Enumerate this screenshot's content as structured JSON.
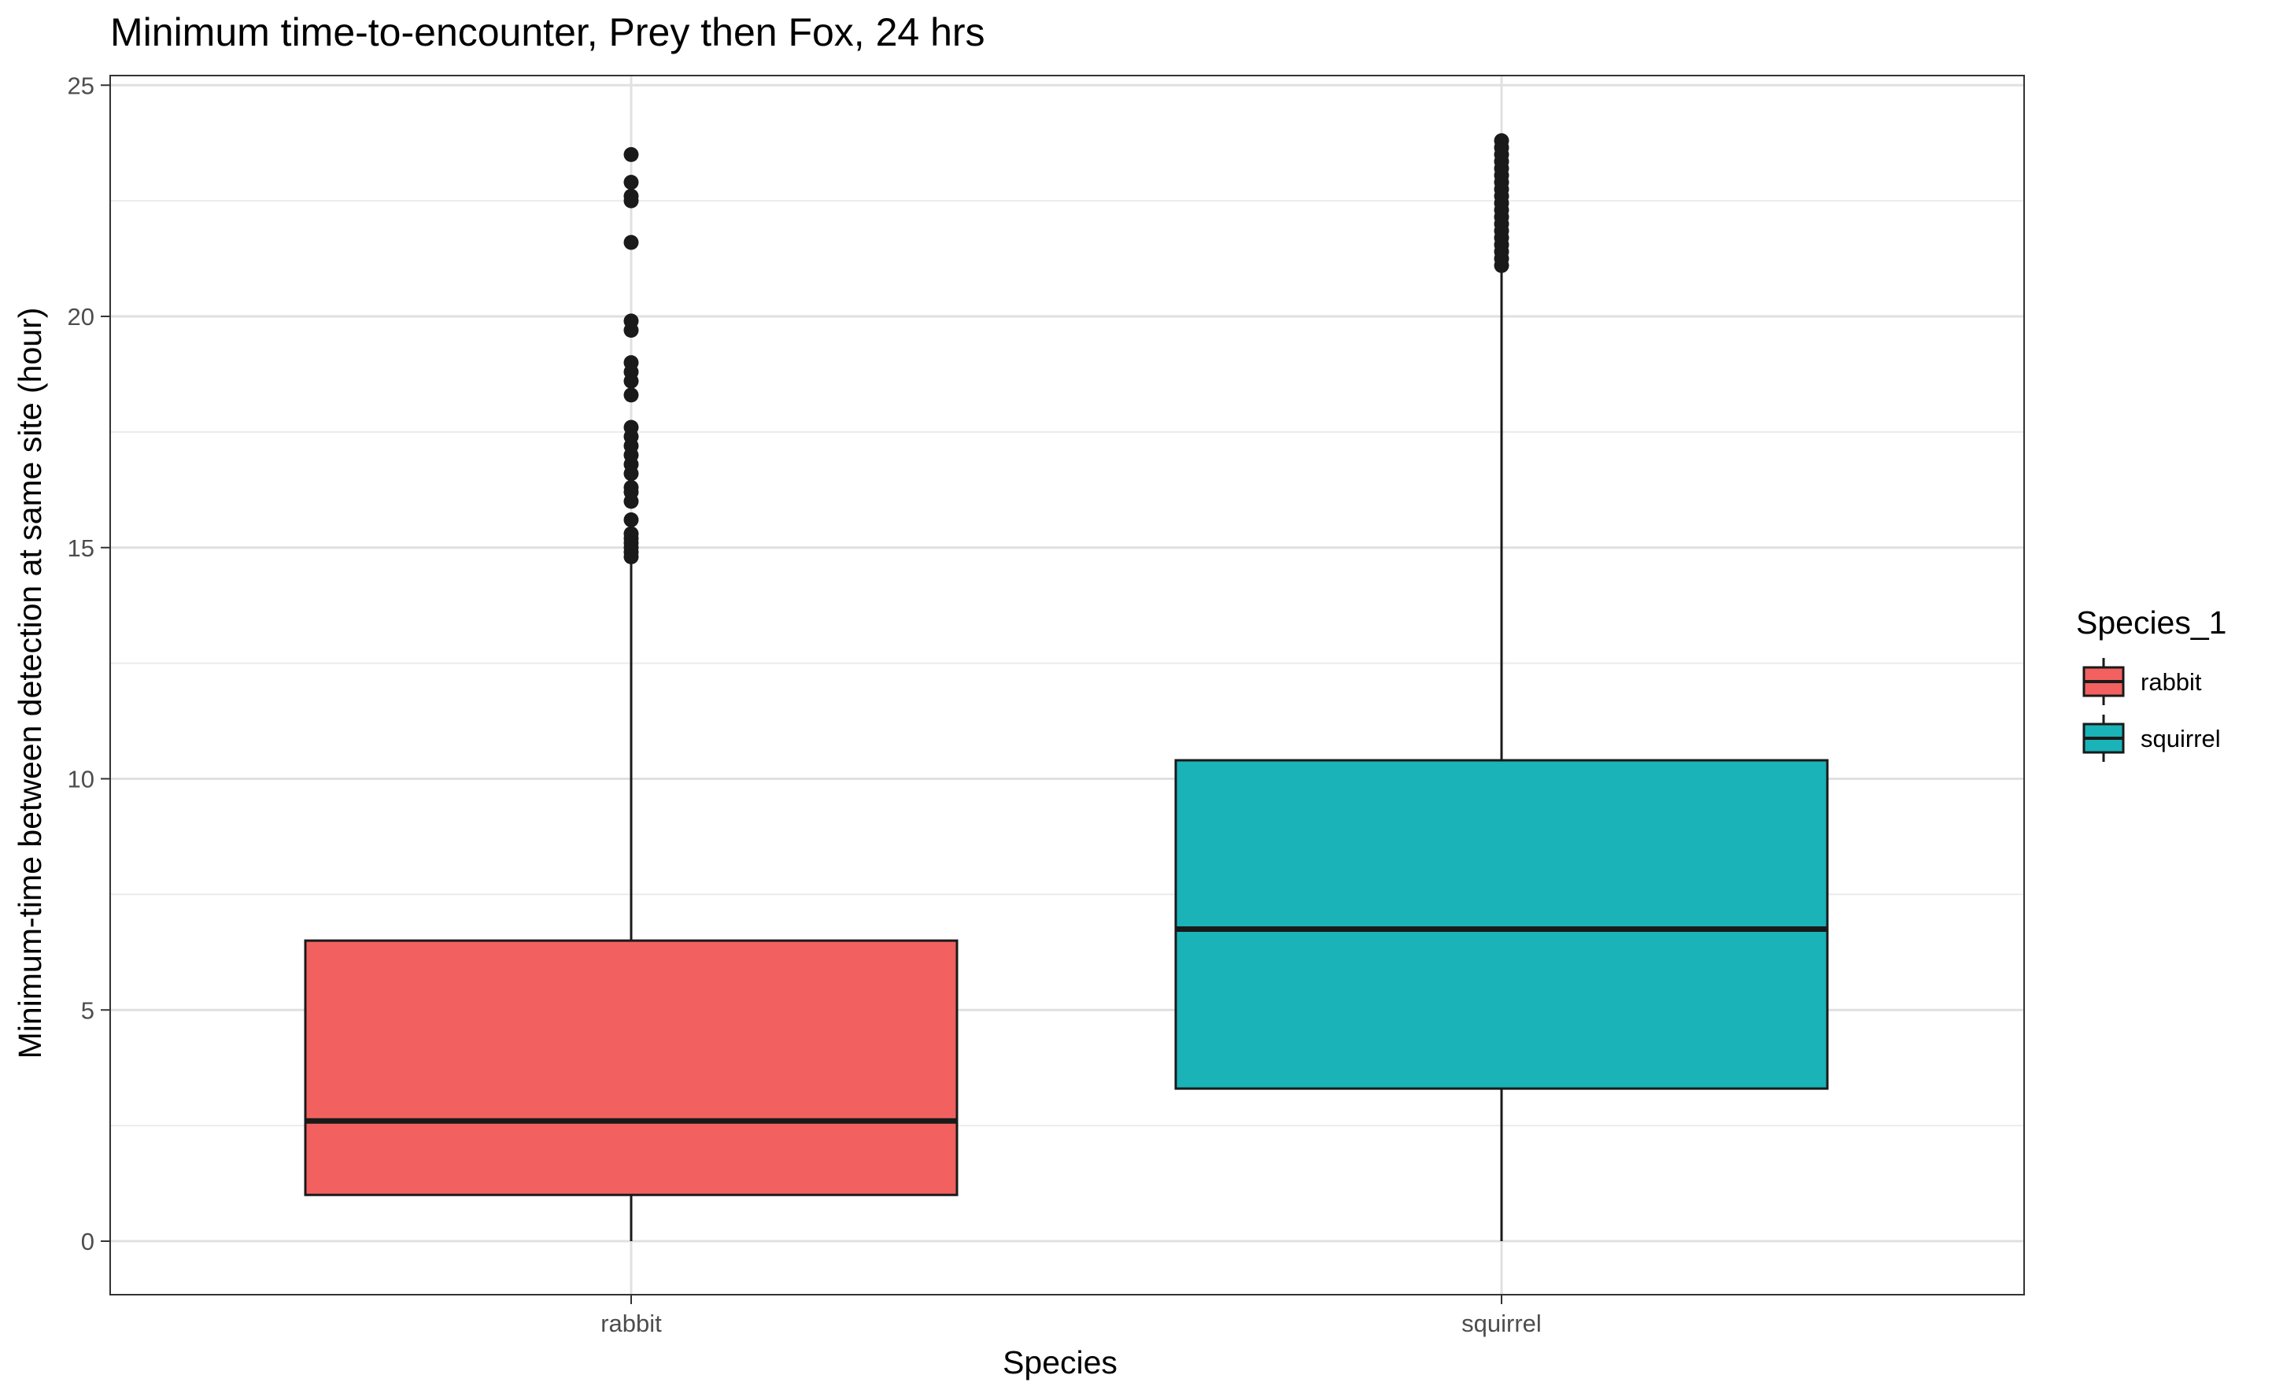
{
  "chart_data": {
    "type": "boxplot",
    "title": "Minimum time-to-encounter, Prey then Fox, 24 hrs",
    "xlabel": "Species",
    "ylabel": "Minimum-time between detection at same site (hour)",
    "ylim": [
      -1.1,
      25.2
    ],
    "yticks": [
      0,
      5,
      10,
      15,
      20,
      25
    ],
    "grid": true,
    "categories": [
      "rabbit",
      "squirrel"
    ],
    "legend": {
      "title": "Species_1",
      "position": "right",
      "entries": [
        "rabbit",
        "squirrel"
      ]
    },
    "series": [
      {
        "category": "rabbit",
        "color": "#F26160",
        "min": 0,
        "q1": 1.0,
        "median": 2.6,
        "q3": 6.5,
        "max": 14.8,
        "outliers": [
          14.8,
          14.9,
          15.0,
          15.1,
          15.2,
          15.3,
          15.6,
          16.0,
          16.2,
          16.3,
          16.6,
          16.8,
          17.0,
          17.2,
          17.4,
          17.6,
          18.3,
          18.6,
          18.8,
          19.0,
          19.7,
          19.9,
          21.6,
          22.5,
          22.6,
          22.9,
          23.5
        ]
      },
      {
        "category": "squirrel",
        "color": "#1AB3B8",
        "min": 0,
        "q1": 3.3,
        "median": 6.75,
        "q3": 10.4,
        "max": 21.0,
        "outliers": [
          21.1,
          21.25,
          21.4,
          21.55,
          21.7,
          21.85,
          22.0,
          22.15,
          22.3,
          22.45,
          22.6,
          22.75,
          22.9,
          23.05,
          23.2,
          23.35,
          23.5,
          23.65,
          23.8
        ]
      }
    ]
  }
}
